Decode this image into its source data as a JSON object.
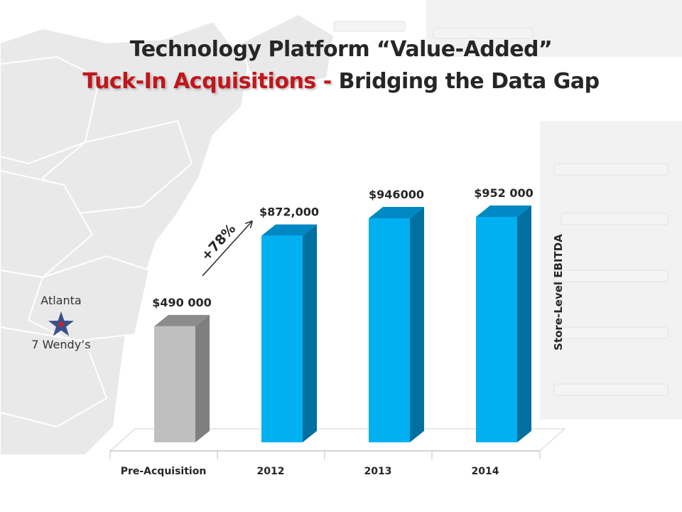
{
  "slide": {
    "title_line_1": "Technology Platform “Value-Added”",
    "title_line_2_accent": "Tuck-In Acquisitions -",
    "title_line_2_rest": " Bridging the Data Gap"
  },
  "map_annotation": {
    "city": "Atlanta",
    "store_count": "7 Wendy’s",
    "marker_icon": "star-icon",
    "marker_fill": "#3b4f8c",
    "marker_center": "#d21f26"
  },
  "growth_arrow": {
    "label": "+78%"
  },
  "chart_data": {
    "type": "bar",
    "categories": [
      "Pre-Acquisition",
      "2012",
      "2013",
      "2014"
    ],
    "values": [
      490000,
      872000,
      946000,
      952000
    ],
    "data_labels": [
      "$490 000",
      "$872,000",
      "$946000",
      "$952 000"
    ],
    "xlabel": "",
    "ylabel": "Store-Level EBITDA",
    "ylim": [
      0,
      1000000
    ],
    "grid": false,
    "legend": "none",
    "style": "3d-column",
    "colors": {
      "baseline": "#bfbfbf",
      "baseline_side": "#7f7f7f",
      "baseline_top": "#8c8c8c",
      "bars": "#00b0f0",
      "bars_side": "#0070a0",
      "bars_top": "#0088c4"
    }
  }
}
